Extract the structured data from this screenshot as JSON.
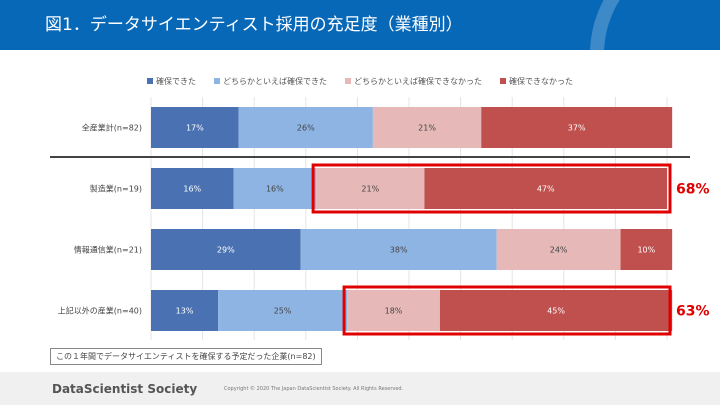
{
  "title": "図1．データサイエンティスト採用の充足度（業種別）",
  "chart_data": {
    "type": "bar",
    "orientation": "horizontal",
    "stacked": true,
    "categories": [
      "全産業計(n=82)",
      "製造業(n=19)",
      "情報通信業(n=21)",
      "上記以外の産業(n=40)"
    ],
    "series": [
      {
        "name": "確保できた",
        "values": [
          17,
          16,
          29,
          13
        ],
        "color": "#4a72b2"
      },
      {
        "name": "どちらかといえば確保できた",
        "values": [
          26,
          16,
          38,
          25
        ],
        "color": "#8eb4e3"
      },
      {
        "name": "どちらかといえば確保できなかった",
        "values": [
          21,
          21,
          24,
          18
        ],
        "color": "#e6b9b8"
      },
      {
        "name": "確保できなかった",
        "values": [
          37,
          47,
          10,
          45
        ],
        "color": "#c0504d"
      }
    ],
    "unit": "%",
    "xlim": [
      0,
      100
    ],
    "legend": "top",
    "annotations": [
      {
        "category": "製造業(n=19)",
        "label": "68%"
      },
      {
        "category": "上記以外の産業(n=40)",
        "label": "63%"
      }
    ]
  },
  "note": "この１年間でデータサイエンティストを確保する予定だった企業(n=82)",
  "footer": {
    "brand": "DataScientist Society",
    "copyright": "Copyright © 2020 The Japan DataScientist Society. All Rights Reserved."
  }
}
